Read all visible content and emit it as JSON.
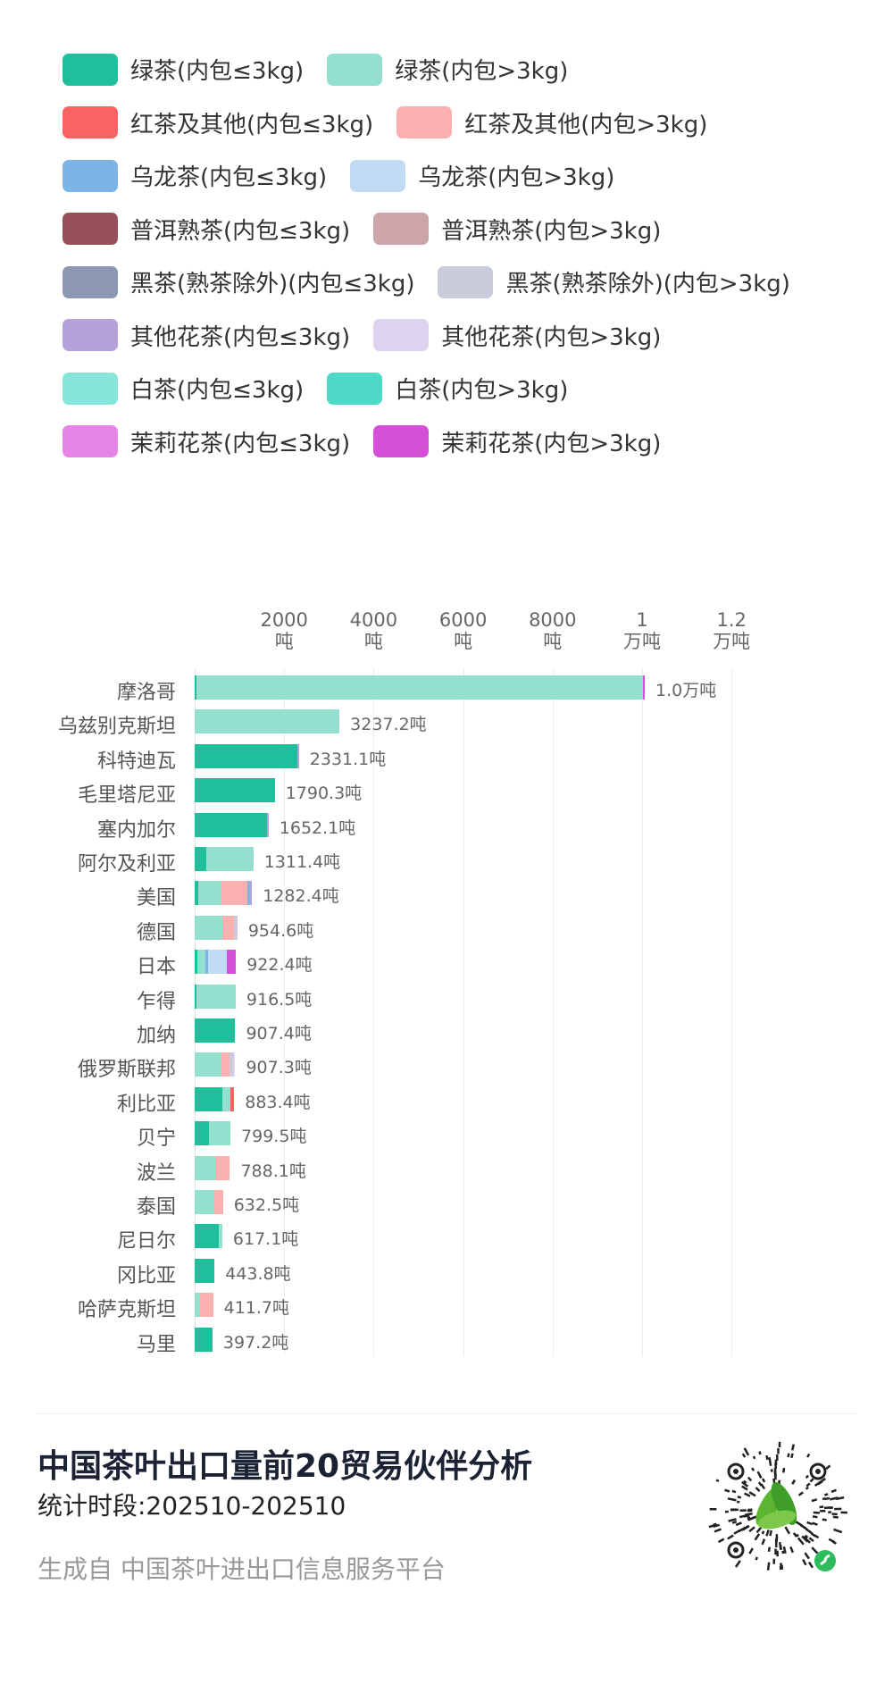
{
  "legend": [
    {
      "label": "绿茶(内包≤3kg)",
      "color": "#1fbf9c"
    },
    {
      "label": "绿茶(内包>3kg)",
      "color": "#93e0cf"
    },
    {
      "label": "红茶及其他(内包≤3kg)",
      "color": "#fb6262"
    },
    {
      "label": "红茶及其他(内包>3kg)",
      "color": "#fbb0b0"
    },
    {
      "label": "乌龙茶(内包≤3kg)",
      "color": "#7cb4e6"
    },
    {
      "label": "乌龙茶(内包>3kg)",
      "color": "#c0dbf3"
    },
    {
      "label": "普洱熟茶(内包≤3kg)",
      "color": "#955059"
    },
    {
      "label": "普洱熟茶(内包>3kg)",
      "color": "#cca5aa"
    },
    {
      "label": "黑茶(熟茶除外)(内包≤3kg)",
      "color": "#8c98b3"
    },
    {
      "label": "黑茶(熟茶除外)(内包>3kg)",
      "color": "#c8ccdb"
    },
    {
      "label": "其他花茶(内包≤3kg)",
      "color": "#b3a2dc"
    },
    {
      "label": "其他花茶(内包>3kg)",
      "color": "#ddd3ef"
    },
    {
      "label": "白茶(内包≤3kg)",
      "color": "#86e6d9"
    },
    {
      "label": "白茶(内包>3kg)",
      "color": "#4edac6"
    },
    {
      "label": "茉莉花茶(内包≤3kg)",
      "color": "#e685e6"
    },
    {
      "label": "茉莉花茶(内包>3kg)",
      "color": "#d64fd9"
    }
  ],
  "chart_data": {
    "type": "bar",
    "orientation": "horizontal",
    "stacked": true,
    "categories": [
      "摩洛哥",
      "乌兹别克斯坦",
      "科特迪瓦",
      "毛里塔尼亚",
      "塞内加尔",
      "阿尔及利亚",
      "美国",
      "德国",
      "日本",
      "乍得",
      "加纳",
      "俄罗斯联邦",
      "利比亚",
      "贝宁",
      "波兰",
      "泰国",
      "尼日尔",
      "冈比亚",
      "哈萨克斯坦",
      "马里"
    ],
    "total_labels": [
      "1.0万吨",
      "3237.2吨",
      "2331.1吨",
      "1790.3吨",
      "1652.1吨",
      "1311.4吨",
      "1282.4吨",
      "954.6吨",
      "922.4吨",
      "916.5吨",
      "907.4吨",
      "907.3吨",
      "883.4吨",
      "799.5吨",
      "788.1吨",
      "632.5吨",
      "617.1吨",
      "443.8吨",
      "411.7吨",
      "397.2吨"
    ],
    "xlim": [
      0,
      12000
    ],
    "x_ticks": [
      {
        "value": 2000,
        "line1": "2000",
        "line2": "吨"
      },
      {
        "value": 4000,
        "line1": "4000",
        "line2": "吨"
      },
      {
        "value": 6000,
        "line1": "6000",
        "line2": "吨"
      },
      {
        "value": 8000,
        "line1": "8000",
        "line2": "吨"
      },
      {
        "value": 10000,
        "line1": "1",
        "line2": "万吨"
      },
      {
        "value": 12000,
        "line1": "1.2",
        "line2": "万吨"
      }
    ],
    "grid": true,
    "legend_position": "top",
    "unit": "吨",
    "series": [
      {
        "name": "绿茶(内包≤3kg)",
        "values": [
          40,
          0,
          2300,
          1790.3,
          1610,
          260,
          77,
          0,
          55,
          30,
          907.4,
          0,
          610,
          313,
          0,
          0,
          533,
          443.8,
          0,
          397.2
        ]
      },
      {
        "name": "绿茶(内包>3kg)",
        "values": [
          9980,
          3237.2,
          0,
          0,
          0,
          1051.4,
          517,
          627,
          187,
          886.5,
          0,
          600,
          180,
          486.5,
          458,
          430,
          84.1,
          0,
          113,
          0
        ]
      },
      {
        "name": "红茶及其他(内包≤3kg)",
        "values": [
          0,
          0,
          0,
          0,
          0,
          0,
          0,
          0,
          0,
          0,
          0,
          0,
          93.4,
          0,
          0,
          0,
          0,
          0,
          0,
          0
        ]
      },
      {
        "name": "红茶及其他(内包>3kg)",
        "values": [
          0,
          0,
          0,
          0,
          0,
          0,
          583,
          253,
          0,
          0,
          0,
          178,
          0,
          0,
          330.1,
          202.5,
          0,
          0,
          298.7,
          0
        ]
      },
      {
        "name": "乌龙茶(内包≤3kg)",
        "values": [
          0,
          0,
          0,
          0,
          0,
          0,
          45.4,
          0,
          55,
          0,
          0,
          0,
          0,
          0,
          0,
          0,
          0,
          0,
          0,
          0
        ]
      },
      {
        "name": "乌龙茶(内包>3kg)",
        "values": [
          0,
          0,
          0,
          0,
          0,
          0,
          0,
          0,
          418,
          0,
          0,
          0,
          0,
          0,
          0,
          0,
          0,
          0,
          0,
          0
        ]
      },
      {
        "name": "普洱熟茶(内包≤3kg)",
        "values": [
          0,
          0,
          0,
          0,
          0,
          0,
          0,
          0,
          0,
          0,
          0,
          0,
          0,
          0,
          0,
          0,
          0,
          0,
          0,
          0
        ]
      },
      {
        "name": "普洱熟茶(内包>3kg)",
        "values": [
          0,
          0,
          0,
          0,
          0,
          0,
          0,
          0,
          0,
          0,
          0,
          0,
          0,
          0,
          0,
          0,
          0,
          0,
          0,
          0
        ]
      },
      {
        "name": "黑茶(熟茶除外)(内包≤3kg)",
        "values": [
          0,
          0,
          0,
          0,
          0,
          0,
          0,
          0,
          0,
          0,
          0,
          0,
          0,
          0,
          0,
          0,
          0,
          0,
          0,
          0
        ]
      },
      {
        "name": "黑茶(熟茶除外)(内包>3kg)",
        "values": [
          0,
          0,
          0,
          0,
          0,
          0,
          0,
          74.6,
          0,
          0,
          0,
          85,
          0,
          0,
          0,
          0,
          0,
          0,
          0,
          0
        ]
      },
      {
        "name": "其他花茶(内包≤3kg)",
        "values": [
          0,
          0,
          31.1,
          0,
          42.1,
          0,
          60,
          0,
          0,
          0,
          0,
          0,
          0,
          0,
          0,
          0,
          0,
          0,
          0,
          0
        ]
      },
      {
        "name": "其他花茶(内包>3kg)",
        "values": [
          0,
          0,
          0,
          0,
          0,
          0,
          0,
          0,
          0,
          0,
          0,
          44.3,
          0,
          0,
          0,
          0,
          0,
          0,
          0,
          0
        ]
      },
      {
        "name": "白茶(内包≤3kg)",
        "values": [
          0,
          0,
          0,
          0,
          0,
          0,
          0,
          0,
          0,
          0,
          0,
          0,
          0,
          0,
          0,
          0,
          0,
          0,
          0,
          0
        ]
      },
      {
        "name": "白茶(内包>3kg)",
        "values": [
          0,
          0,
          0,
          0,
          0,
          0,
          0,
          0,
          0,
          0,
          0,
          0,
          0,
          0,
          0,
          0,
          0,
          0,
          0,
          0
        ]
      },
      {
        "name": "茉莉花茶(内包≤3kg)",
        "values": [
          0,
          0,
          0,
          0,
          0,
          0,
          0,
          0,
          0,
          0,
          0,
          0,
          0,
          0,
          0,
          0,
          0,
          0,
          0,
          0
        ]
      },
      {
        "name": "茉莉花茶(内包>3kg)",
        "values": [
          40,
          0,
          0,
          0,
          0,
          0,
          0,
          0,
          207.4,
          0,
          0,
          0,
          0,
          0,
          0,
          0,
          0,
          0,
          0,
          0
        ]
      }
    ]
  },
  "footer": {
    "title": "中国茶叶出口量前20贸易伙伴分析",
    "period": "统计时段:202510-202510",
    "source": "生成自 中国茶叶进出口信息服务平台",
    "qr_icon": "mini-program-qr-code-icon"
  }
}
